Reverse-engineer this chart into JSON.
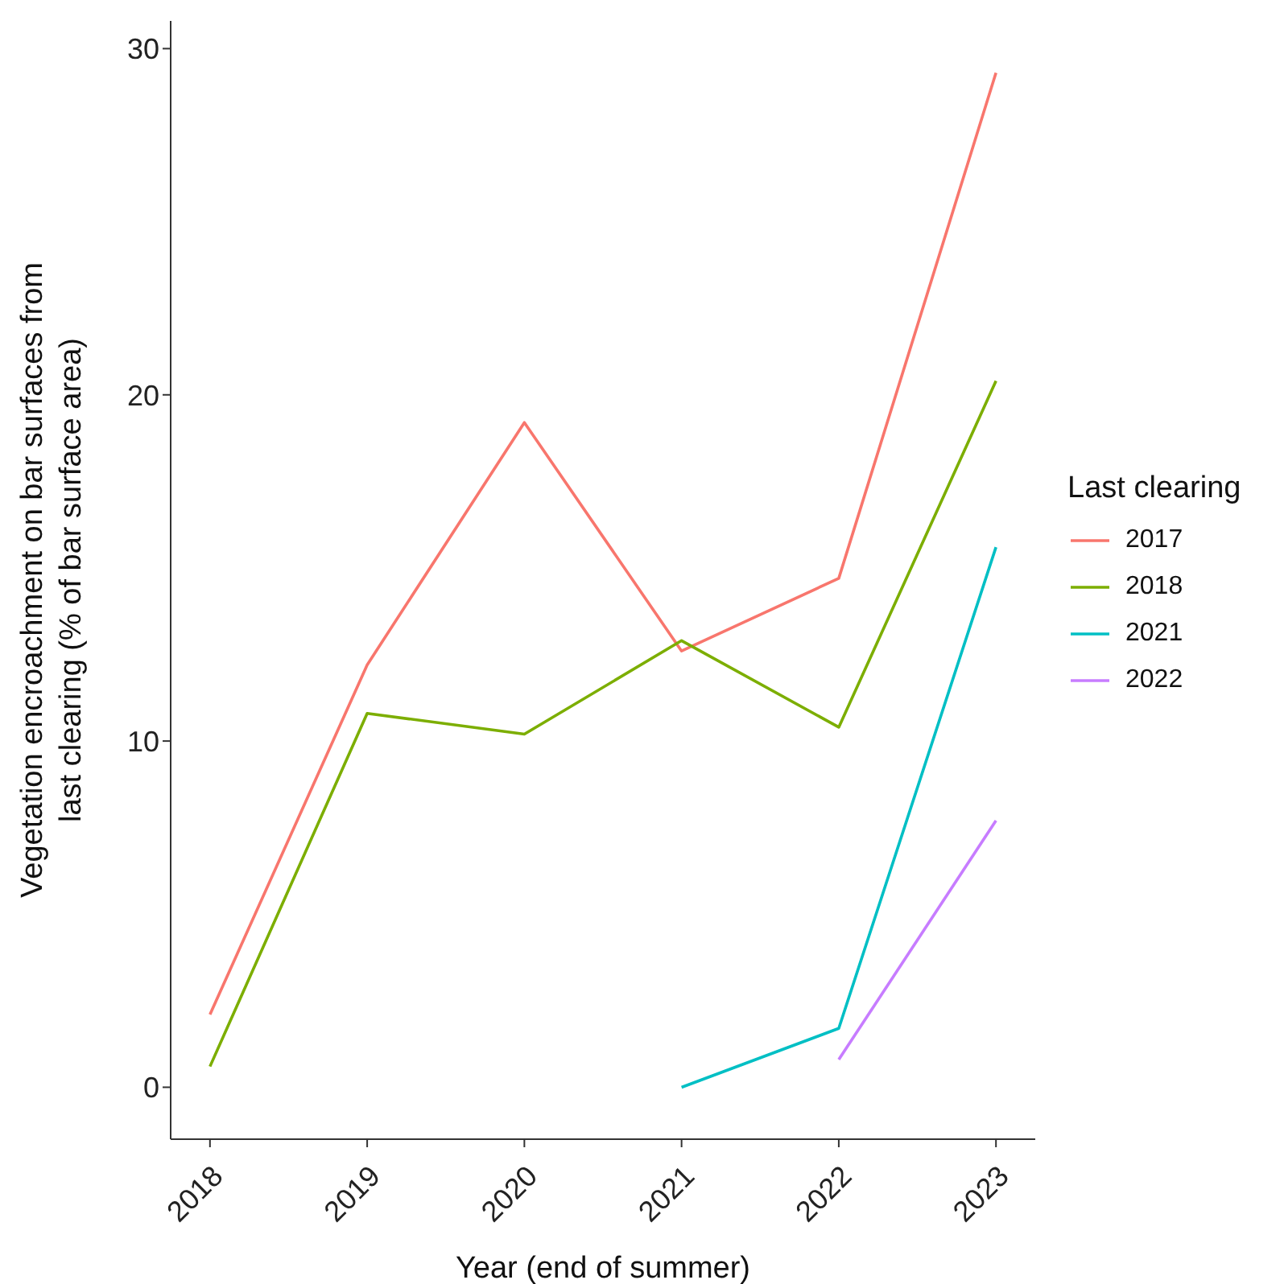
{
  "chart_data": {
    "type": "line",
    "xlabel": "Year (end of summer)",
    "ylabel": "Vegetation encroachment on bar surfaces from last clearing (% of bar surface area)",
    "legend_title": "Last clearing",
    "x": [
      2018,
      2019,
      2020,
      2021,
      2022,
      2023
    ],
    "series": [
      {
        "name": "2017",
        "color": "#f8766d",
        "values": [
          2.1,
          12.2,
          19.2,
          12.6,
          14.7,
          29.3
        ]
      },
      {
        "name": "2018",
        "color": "#7cae00",
        "values": [
          0.6,
          10.8,
          10.2,
          12.9,
          10.4,
          20.4
        ]
      },
      {
        "name": "2021",
        "color": "#00bfc4",
        "x": [
          2021,
          2022,
          2023
        ],
        "values": [
          0,
          1.7,
          15.6
        ]
      },
      {
        "name": "2022",
        "color": "#c77cff",
        "x": [
          2022,
          2023
        ],
        "values": [
          0.8,
          7.7
        ]
      }
    ],
    "xlim": [
      2017.75,
      2023.25
    ],
    "xticks": [
      2018,
      2019,
      2020,
      2021,
      2022,
      2023
    ],
    "ylim": [
      -1.5,
      30.8
    ],
    "yticks": [
      0,
      10,
      20,
      30
    ],
    "grid": false,
    "legend": "right",
    "marker": "none",
    "line_style": "solid"
  }
}
